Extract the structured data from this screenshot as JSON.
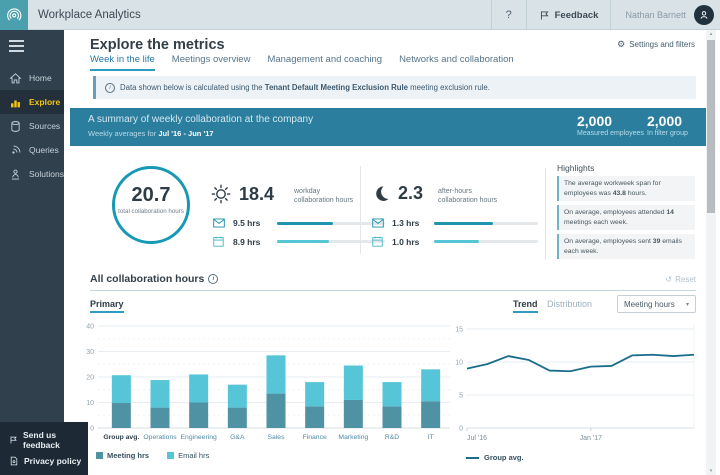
{
  "topbar": {
    "app_title": "Workplace Analytics",
    "help_label": "?",
    "feedback_label": "Feedback",
    "user_name": "Nathan Barnett"
  },
  "sidebar": {
    "items": [
      {
        "label": "Home"
      },
      {
        "label": "Explore"
      },
      {
        "label": "Sources"
      },
      {
        "label": "Queries"
      },
      {
        "label": "Solutions"
      }
    ],
    "footer_items": [
      {
        "label": "Send us feedback"
      },
      {
        "label": "Privacy policy"
      }
    ]
  },
  "header": {
    "title": "Explore the metrics",
    "settings_label": "Settings and filters"
  },
  "tabs": [
    {
      "label": "Week in the life",
      "active": true
    },
    {
      "label": "Meetings overview",
      "active": false
    },
    {
      "label": "Management and coaching",
      "active": false
    },
    {
      "label": "Networks and collaboration",
      "active": false
    }
  ],
  "info_banner": {
    "prefix": "Data shown below is calculated using the ",
    "bold": "Tenant Default Meeting Exclusion Rule",
    "suffix": " meeting exclusion rule."
  },
  "summary_banner": {
    "title": "A summary of weekly collaboration at the company",
    "subtitle_prefix": "Weekly averages for ",
    "subtitle_bold": "Jul '16 - Jun '17",
    "stats": [
      {
        "value": "2,000",
        "label": "Measured employees"
      },
      {
        "value": "2,000",
        "label": "In filter group"
      }
    ]
  },
  "metrics": {
    "total": {
      "value": "20.7",
      "label": "total collaboration hours"
    },
    "workday": {
      "value": "18.4",
      "label": "workday collaboration hours",
      "rows": [
        {
          "icon": "email-icon",
          "value": "9.5 hrs",
          "hours": 9.5,
          "color": "#1f94ae"
        },
        {
          "icon": "calendar-icon",
          "value": "8.9 hrs",
          "hours": 8.9,
          "color": "#55c6d5"
        }
      ]
    },
    "after_hours": {
      "value": "2.3",
      "label": "after-hours collaboration hours",
      "rows": [
        {
          "icon": "email-icon",
          "value": "1.3 hrs",
          "hours": 1.3,
          "color": "#1f94ae"
        },
        {
          "icon": "calendar-icon",
          "value": "1.0 hrs",
          "hours": 1.0,
          "color": "#55c6d5"
        }
      ]
    }
  },
  "highlights": {
    "title": "Highlights",
    "cards": [
      {
        "prefix": "The average workweek span for employees was ",
        "bold": "43.8",
        "suffix": " hours."
      },
      {
        "prefix": "On average, employees attended ",
        "bold": "14",
        "suffix": " meetings each week."
      },
      {
        "prefix": "On average, employees sent ",
        "bold": "39",
        "suffix": " emails each week."
      }
    ]
  },
  "section": {
    "title": "All collaboration hours",
    "reset_label": "Reset",
    "primary_label": "Primary",
    "trend_label": "Trend",
    "distribution_label": "Distribution",
    "metric_dropdown": "Meeting hours"
  },
  "chart_data": [
    {
      "type": "bar",
      "stacked": true,
      "title": "Primary",
      "categories": [
        "Group avg.",
        "Operations",
        "Engineering",
        "G&A",
        "Sales",
        "Finance",
        "Marketing",
        "R&D",
        "IT"
      ],
      "series": [
        {
          "name": "Meeting hrs",
          "color": "#4f92a4",
          "values": [
            9.8,
            8.0,
            10.0,
            8.0,
            13.5,
            8.5,
            11.0,
            8.5,
            10.5
          ]
        },
        {
          "name": "Email hrs",
          "color": "#56c5d8",
          "values": [
            10.9,
            10.8,
            11.0,
            9.0,
            15.0,
            9.5,
            13.5,
            9.5,
            12.5
          ]
        }
      ],
      "ylabel": "hours",
      "ylim": [
        0,
        40
      ],
      "yticks": [
        0,
        10,
        20,
        30,
        40
      ],
      "legend_position": "bottom"
    },
    {
      "type": "line",
      "title": "Trend",
      "x": [
        0,
        1,
        2,
        3,
        4,
        5,
        6,
        7,
        8,
        9,
        10,
        11
      ],
      "x_tick_labels": [
        {
          "index": 0,
          "label": "Jul '16"
        },
        {
          "index": 6,
          "label": "Jan '17"
        }
      ],
      "series": [
        {
          "name": "Group avg.",
          "color": "#1b6d8c",
          "values": [
            9.0,
            9.7,
            10.9,
            10.3,
            8.7,
            8.6,
            9.3,
            9.4,
            11.0,
            11.1,
            10.9,
            11.1
          ]
        }
      ],
      "ylabel": "hours",
      "ylim": [
        0,
        15
      ],
      "yticks": [
        0,
        5,
        10,
        15
      ],
      "legend_position": "bottom"
    }
  ]
}
